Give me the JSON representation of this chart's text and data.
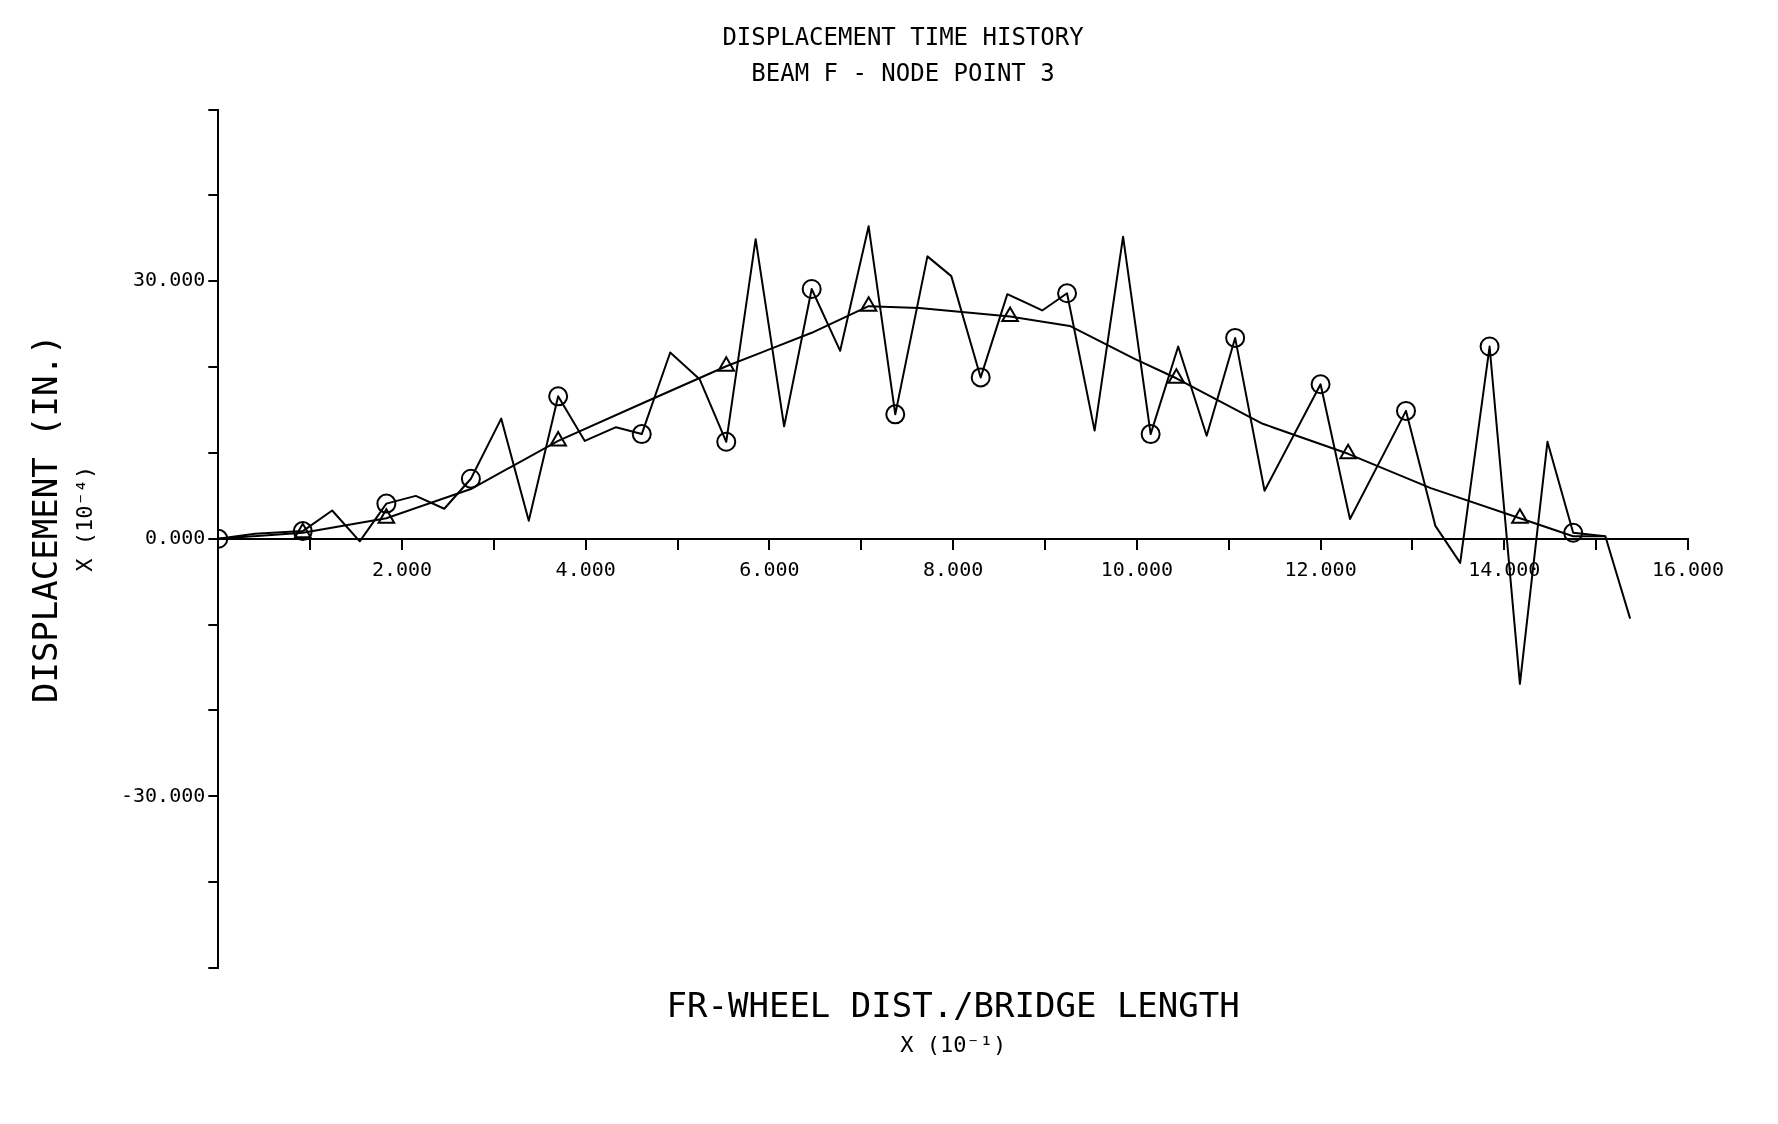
{
  "chart_data": {
    "type": "line",
    "title": "DISPLACEMENT TIME HISTORY",
    "subtitle": "BEAM F - NODE POINT 3",
    "xlabel": "FR-WHEEL DIST./BRIDGE LENGTH\nX (10⁻¹)",
    "ylabel": "DISPLACEMENT (IN.)\nX (10⁻⁴)",
    "xlim": [
      0,
      16
    ],
    "ylim": [
      -50,
      50
    ],
    "xticks": [
      {
        "value": 0,
        "label": null
      },
      {
        "value": 1,
        "label": null
      },
      {
        "value": 2,
        "label": "2.000"
      },
      {
        "value": 3,
        "label": null
      },
      {
        "value": 4,
        "label": "4.000"
      },
      {
        "value": 5,
        "label": null
      },
      {
        "value": 6,
        "label": "6.000"
      },
      {
        "value": 7,
        "label": null
      },
      {
        "value": 8,
        "label": "8.000"
      },
      {
        "value": 9,
        "label": null
      },
      {
        "value": 10,
        "label": "10.000"
      },
      {
        "value": 11,
        "label": null
      },
      {
        "value": 12,
        "label": "12.000"
      },
      {
        "value": 13,
        "label": null
      },
      {
        "value": 14,
        "label": "14.000"
      },
      {
        "value": 15,
        "label": null
      },
      {
        "value": 16,
        "label": "16.000"
      }
    ],
    "yticks": [
      {
        "value": -50,
        "label": null
      },
      {
        "value": -40,
        "label": null
      },
      {
        "value": -30,
        "label": "-30.000"
      },
      {
        "value": -20,
        "label": null
      },
      {
        "value": -10,
        "label": null
      },
      {
        "value": 0,
        "label": "0.000"
      },
      {
        "value": 10,
        "label": null
      },
      {
        "value": 20,
        "label": null
      },
      {
        "value": 30,
        "label": "30.000"
      },
      {
        "value": 40,
        "label": null
      },
      {
        "value": 50,
        "label": null
      }
    ],
    "grid": false,
    "legend": false,
    "series": [
      {
        "color": "#000000",
        "marker": "none",
        "x": [
          0,
          0.92,
          1.83,
          2.75,
          3.7,
          4.6,
          5.53,
          6.46,
          7.08,
          7.63,
          8.62,
          9.27,
          9.97,
          10.43,
          11.37,
          12.3,
          13.2,
          14.17,
          14.75,
          15.1
        ],
        "values": [
          0,
          0.7,
          2.4,
          5.8,
          11.4,
          15.7,
          20.1,
          24,
          27.1,
          26.9,
          25.9,
          24.8,
          21,
          18.7,
          13.4,
          9.9,
          5.9,
          2.4,
          0.3,
          0.3
        ]
      },
      {
        "color": "#000000",
        "marker": "none",
        "x": [
          0,
          0.4,
          0.92,
          1.24,
          1.54,
          1.83,
          2.15,
          2.46,
          2.75,
          3.08,
          3.38,
          3.7,
          3.99,
          4.33,
          4.61,
          4.92,
          5.24,
          5.53,
          5.85,
          6.16,
          6.46,
          6.77,
          7.08,
          7.37,
          7.72,
          7.98,
          8.3,
          8.59,
          8.97,
          9.24,
          9.54,
          9.85,
          10.15,
          10.45,
          10.76,
          11.07,
          11.39,
          12.0,
          12.32,
          12.93,
          13.25,
          13.52,
          13.84,
          14.17,
          14.47,
          14.75,
          15.1,
          15.37
        ],
        "values": [
          0,
          0.6,
          0.9,
          3.3,
          -0.3,
          4.1,
          5,
          3.5,
          7,
          14,
          2.1,
          16.6,
          11.4,
          13,
          12.2,
          21.7,
          18.6,
          11.3,
          34.9,
          13.1,
          29.1,
          21.9,
          36.4,
          14.5,
          32.9,
          30.6,
          18.8,
          28.5,
          26.6,
          28.6,
          12.6,
          35.2,
          12.2,
          22.4,
          12,
          23.4,
          5.6,
          18,
          2.3,
          14.9,
          1.5,
          -2.8,
          22.4,
          -16.9,
          11.3,
          0.7,
          0.3,
          -9.3
        ]
      },
      {
        "type": "scatter",
        "color": "#000000",
        "marker": "circle",
        "x": [
          0,
          0.92,
          1.83,
          2.75,
          3.7,
          4.61,
          5.53,
          6.46,
          7.37,
          8.3,
          9.24,
          10.15,
          11.07,
          12.0,
          12.93,
          13.84,
          14.75
        ],
        "values": [
          0,
          0.9,
          4.1,
          7,
          16.6,
          12.2,
          11.3,
          29.1,
          14.5,
          18.8,
          28.6,
          12.2,
          23.4,
          18,
          14.9,
          22.4,
          0.7
        ]
      },
      {
        "type": "scatter",
        "color": "#000000",
        "marker": "triangle",
        "x": [
          0.92,
          1.83,
          3.7,
          5.53,
          7.08,
          8.62,
          10.43,
          12.3,
          14.17
        ],
        "values": [
          0.7,
          2.4,
          11.4,
          20.1,
          27.1,
          25.9,
          18.7,
          9.9,
          2.4
        ]
      }
    ]
  }
}
